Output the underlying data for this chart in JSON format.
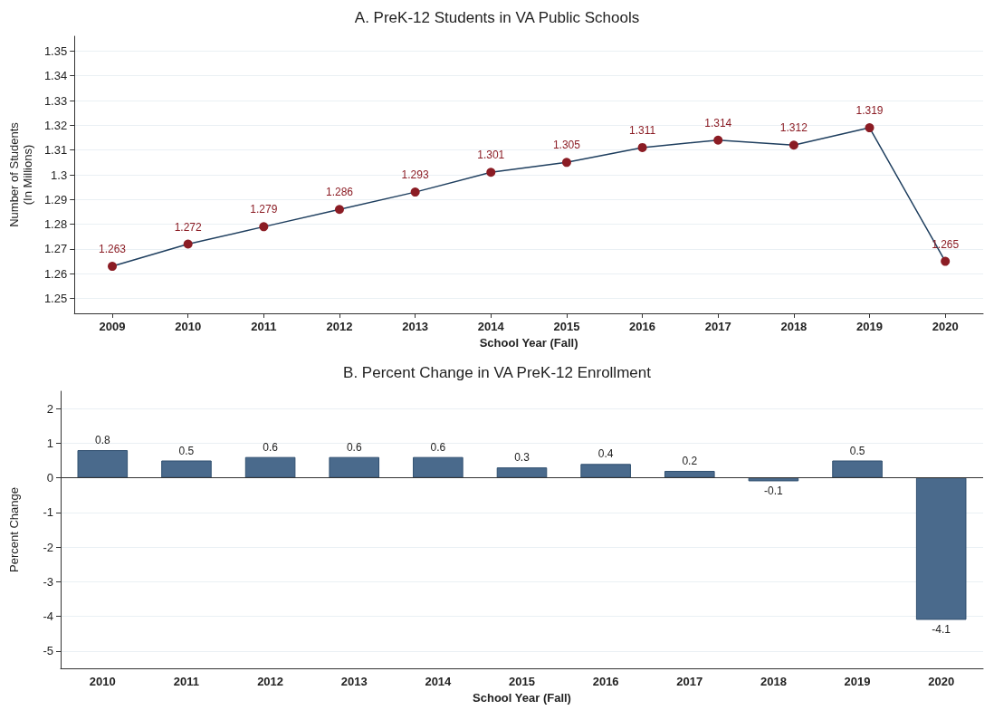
{
  "chart_data": [
    {
      "type": "line",
      "title": "A. PreK-12 Students in VA Public Schools",
      "xlabel": "School Year (Fall)",
      "ylabel": "Number of Students\n(In Millions)",
      "categories": [
        "2009",
        "2010",
        "2011",
        "2012",
        "2013",
        "2014",
        "2015",
        "2016",
        "2017",
        "2018",
        "2019",
        "2020"
      ],
      "series": [
        {
          "color": "#8b1c24",
          "values": [
            1.263,
            1.272,
            1.279,
            1.286,
            1.293,
            1.301,
            1.305,
            1.311,
            1.314,
            1.312,
            1.319,
            1.265
          ]
        }
      ],
      "ylim": [
        1.244,
        1.356
      ],
      "yticks": [
        1.25,
        1.26,
        1.27,
        1.28,
        1.29,
        1.3,
        1.31,
        1.32,
        1.33,
        1.34,
        1.35
      ],
      "grid": "y",
      "marker": "circle",
      "line_style": "solid",
      "data_labels": true
    },
    {
      "type": "bar",
      "title": "B. Percent Change in VA PreK-12 Enrollment",
      "xlabel": "School Year (Fall)",
      "ylabel": "Percent Change",
      "categories": [
        "2010",
        "2011",
        "2012",
        "2013",
        "2014",
        "2015",
        "2016",
        "2017",
        "2018",
        "2019",
        "2020"
      ],
      "series": [
        {
          "color": "#4a6a8c",
          "values": [
            0.8,
            0.5,
            0.6,
            0.6,
            0.6,
            0.3,
            0.4,
            0.2,
            -0.1,
            0.5,
            -4.1
          ]
        }
      ],
      "ylim": [
        -5.5,
        2.5
      ],
      "yticks": [
        -5,
        -4,
        -3,
        -2,
        -1,
        0,
        1,
        2
      ],
      "grid": "y",
      "data_labels": true,
      "ref_lines": [
        {
          "axis": "y",
          "value": 0,
          "color": "#333333"
        }
      ]
    }
  ]
}
